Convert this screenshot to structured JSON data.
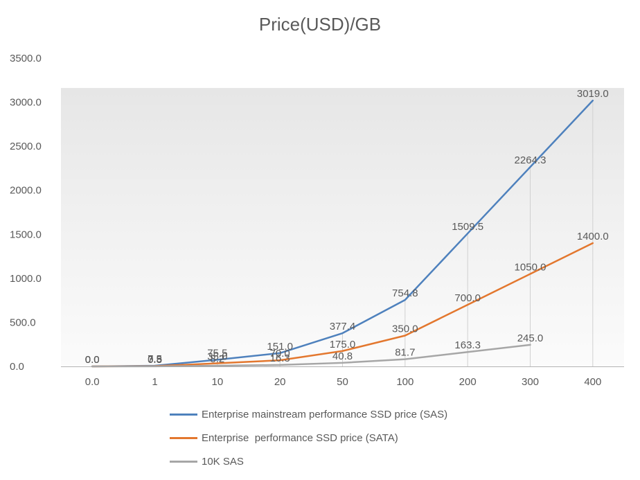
{
  "chart_data": {
    "type": "line",
    "title": "Price(USD)/GB",
    "xlabel": "",
    "ylabel": "",
    "categories": [
      "0.0",
      "1",
      "10",
      "20",
      "50",
      "100",
      "200",
      "300",
      "400"
    ],
    "y_tick_labels": [
      "0.0",
      "500.0",
      "1000.0",
      "1500.0",
      "2000.0",
      "2500.0",
      "3000.0",
      "3500.0"
    ],
    "ylim": [
      0,
      3500
    ],
    "grid": "none",
    "drop_lines": true,
    "legend_position": "bottom-left",
    "text_color": "#595959",
    "axis_color": "#b3b3b3",
    "droplines_color": "#d0d0d0",
    "series": [
      {
        "name": "Enterprise mainstream performance SSD price (SAS)",
        "color": "#4e81bd",
        "values": [
          0.0,
          7.5,
          75.5,
          151.0,
          377.4,
          754.8,
          1509.5,
          2264.3,
          3019.0
        ],
        "labels": [
          "0.0",
          "7.5",
          "75.5",
          "151.0",
          "377.4",
          "754.8",
          "1509.5",
          "2264.3",
          "3019.0"
        ]
      },
      {
        "name": "Enterprise  performance SSD price (SATA)",
        "color": "#e3772e",
        "values": [
          0.0,
          3.5,
          35.0,
          70.0,
          175.0,
          350.0,
          700.0,
          1050.0,
          1400.0
        ],
        "labels": [
          "0.0",
          "3.5",
          "35.0",
          "70.0",
          "175.0",
          "350.0",
          "700.0",
          "1050.0",
          "1400.0"
        ]
      },
      {
        "name": "10K SAS",
        "color": "#a6a6a6",
        "values": [
          0.0,
          0.8,
          8.2,
          16.3,
          40.8,
          81.7,
          163.3,
          245.0
        ],
        "labels": [
          "0.0",
          "0.8",
          "8.2",
          "16.3",
          "40.8",
          "81.7",
          "163.3",
          "245.0"
        ]
      }
    ]
  }
}
